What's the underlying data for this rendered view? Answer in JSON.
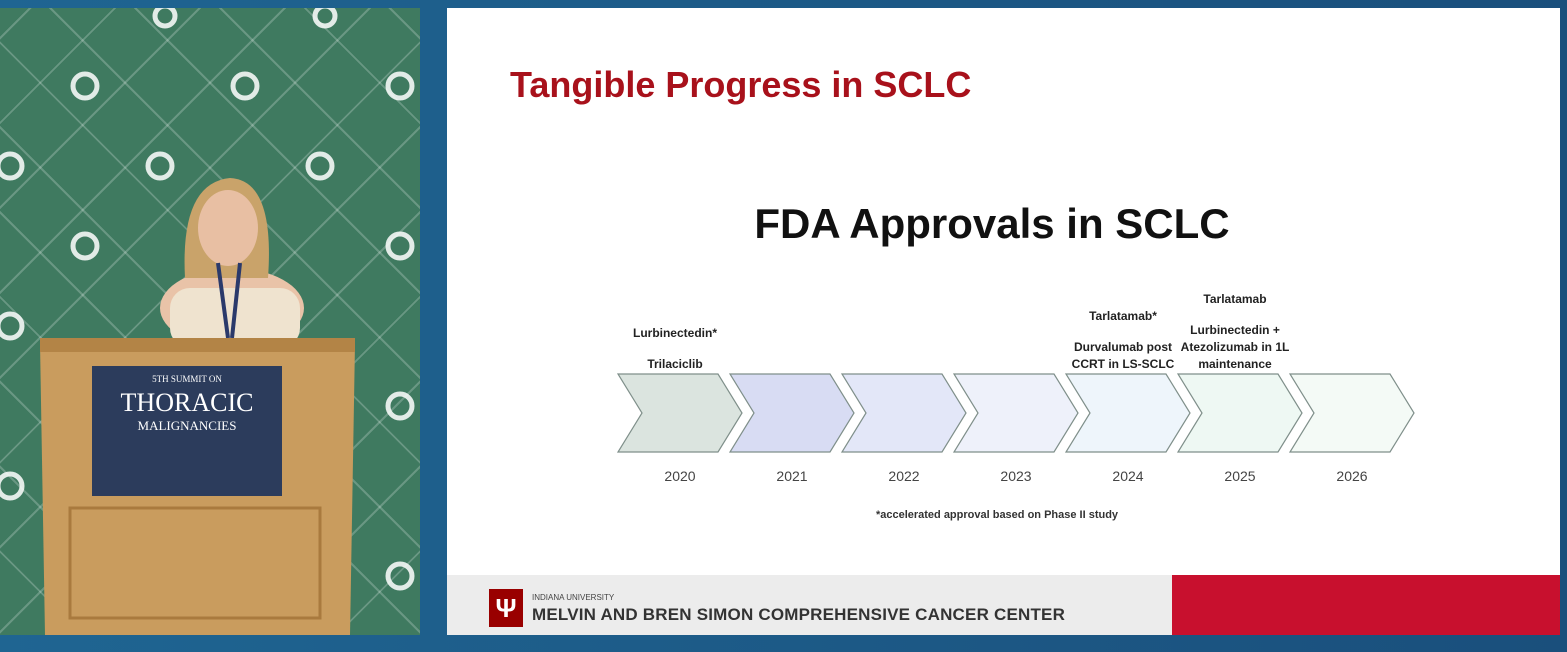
{
  "slide": {
    "title": "Tangible Progress in SCLC",
    "subtitle": "FDA Approvals in SCLC",
    "timeline": [
      {
        "year": "2020",
        "approvals": [
          "Lurbinectedin*",
          "Trilaciclib"
        ]
      },
      {
        "year": "2021",
        "approvals": []
      },
      {
        "year": "2022",
        "approvals": []
      },
      {
        "year": "2023",
        "approvals": []
      },
      {
        "year": "2024",
        "approvals": [
          "Tarlatamab*",
          "Durvalumab post CCRT in LS-SCLC"
        ]
      },
      {
        "year": "2025",
        "approvals": [
          "Tarlatamab",
          "Lurbinectedin + Atezolizumab in 1L maintenance"
        ]
      },
      {
        "year": "2026",
        "approvals": []
      }
    ],
    "footnote": "*accelerated approval based on Phase II study",
    "footer": {
      "institution": "INDIANA UNIVERSITY",
      "center": "MELVIN AND BREN SIMON COMPREHENSIVE CANCER CENTER"
    }
  },
  "podium": {
    "line1": "5TH SUMMIT ON",
    "line2": "THORACIC",
    "line3": "MALIGNANCIES"
  }
}
